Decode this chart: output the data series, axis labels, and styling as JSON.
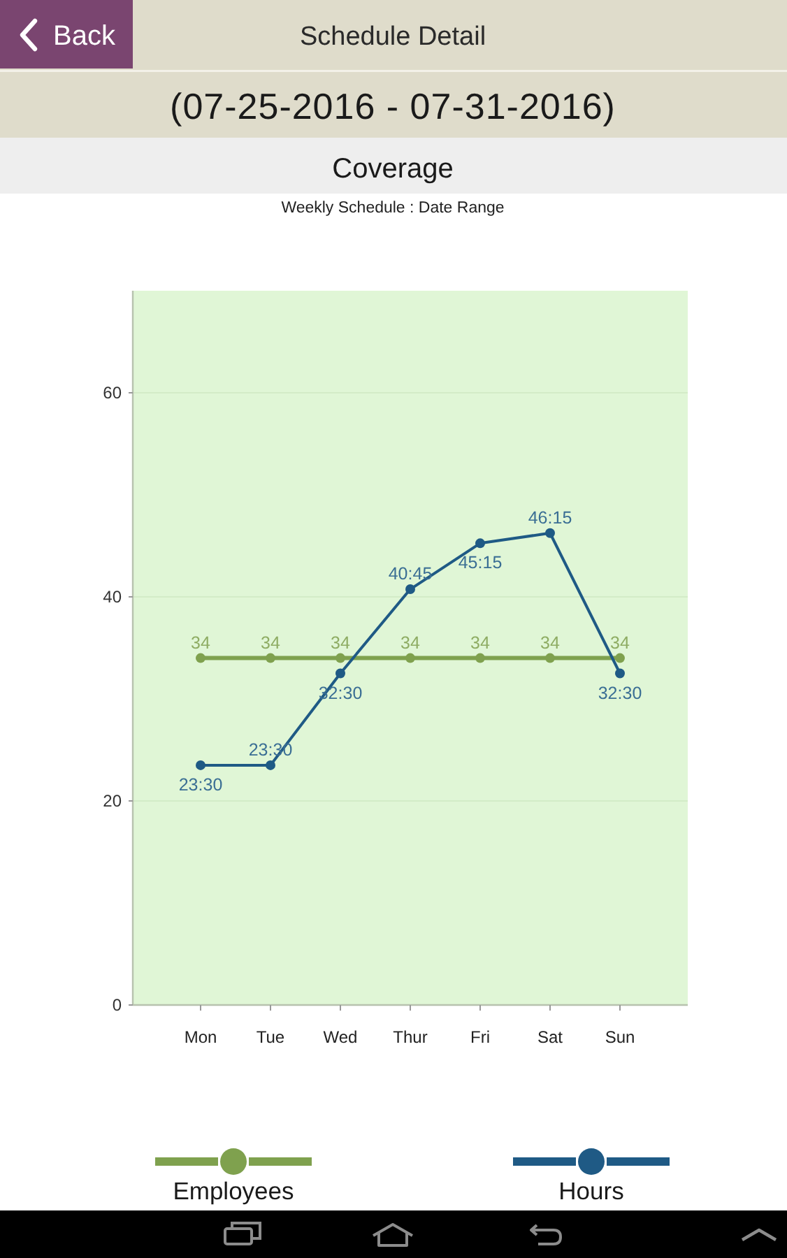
{
  "chart_data": {
    "type": "line",
    "title": "Coverage",
    "subtitle": "Weekly Schedule : Date Range",
    "annotations": [
      "Back",
      "Schedule Detail",
      "(07-25-2016 - 07-31-2016)"
    ],
    "categories": [
      "Mon",
      "Tue",
      "Wed",
      "Thur",
      "Fri",
      "Sat",
      "Sun"
    ],
    "series": [
      {
        "name": "Employees",
        "color": "#7fa14e",
        "values": [
          34,
          34,
          34,
          34,
          34,
          34,
          34
        ],
        "value_labels": [
          "34",
          "34",
          "34",
          "34",
          "34",
          "34",
          "34"
        ]
      },
      {
        "name": "Hours",
        "color": "#1f5a85",
        "values": [
          23.5,
          23.5,
          32.5,
          40.75,
          45.25,
          46.25,
          32.5
        ],
        "value_labels": [
          "23:30",
          "23:30",
          "32:30",
          "40:45",
          "45:15",
          "46:15",
          "32:30"
        ]
      }
    ],
    "ylim": [
      0,
      70
    ],
    "yticks": [
      0,
      20,
      40,
      60
    ],
    "grid": "y",
    "legend": "bottom",
    "marker": "circle"
  }
}
